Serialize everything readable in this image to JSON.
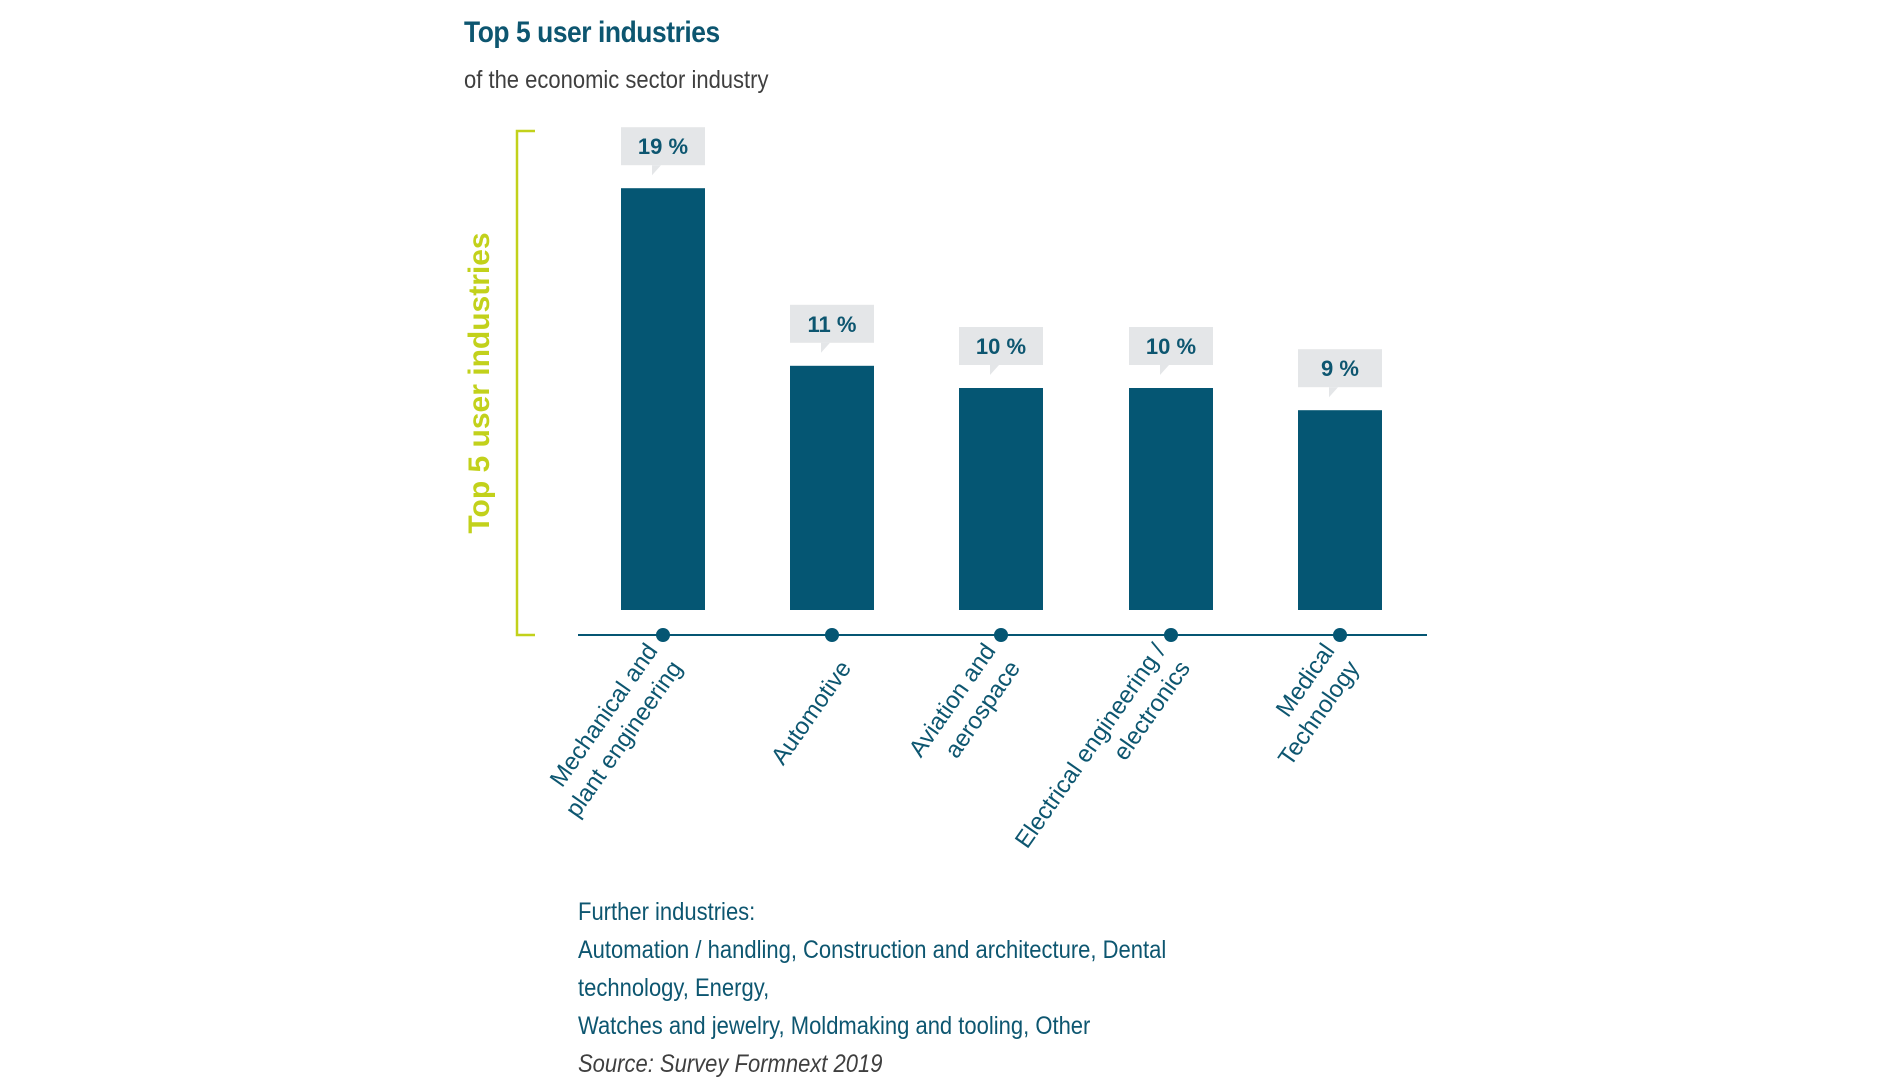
{
  "header": {
    "title": "Top 5 user industries",
    "subtitle": "of the economic sector industry"
  },
  "footer": {
    "heading": "Further industries:",
    "line1": "Automation / handling, Construction and architecture, Dental technology, Energy,",
    "line2": "Watches and jewelry, Moldmaking and tooling, Other",
    "source": "Source: Survey Formnext 2019"
  },
  "colors": {
    "bar": "#055673",
    "accent": "#c2d11b",
    "label_box": "#e4e6e8",
    "text": "#0d5670"
  },
  "chart_data": {
    "type": "bar",
    "title": "Top 5 user industries",
    "subtitle": "of the economic sector industry",
    "ylabel": "Top 5 user industries",
    "xlabel": "",
    "ylim": [
      0,
      20
    ],
    "categories": [
      [
        "Mechanical and",
        "plant engineering"
      ],
      [
        "Automotive"
      ],
      [
        "Aviation and",
        "aerospace"
      ],
      [
        "Electrical engineering /",
        "electronics"
      ],
      [
        "Medical",
        "Technology"
      ]
    ],
    "values": [
      19,
      11,
      10,
      10,
      9
    ],
    "value_labels": [
      "19 %",
      "11 %",
      "10 %",
      "10 %",
      "9 %"
    ]
  }
}
